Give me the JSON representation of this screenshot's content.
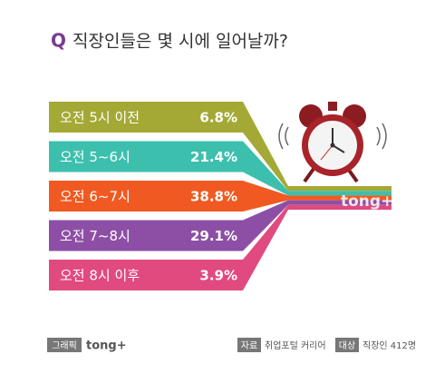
{
  "chart_data": {
    "type": "bar",
    "title_prefix": "Q",
    "title": "직장인들은 몇 시에 일어날까?",
    "categories": [
      "오전 5시 이전",
      "오전 5~6시",
      "오전 6~7시",
      "오전 7~8시",
      "오전 8시 이후"
    ],
    "values": [
      6.8,
      21.4,
      38.8,
      29.1,
      3.9
    ],
    "value_labels": [
      "6.8%",
      "21.4%",
      "38.8%",
      "29.1%",
      "3.9%"
    ],
    "colors": [
      "#a4a936",
      "#3dbfae",
      "#f05a22",
      "#8d4fa6",
      "#e04a7f"
    ],
    "watermark": "tong+",
    "footer": {
      "graphic_label": "그래픽",
      "graphic_brand": "tong+",
      "source_label": "자료",
      "source": "취업포털 커리어",
      "target_label": "대상",
      "target": "직장인 412명"
    }
  }
}
